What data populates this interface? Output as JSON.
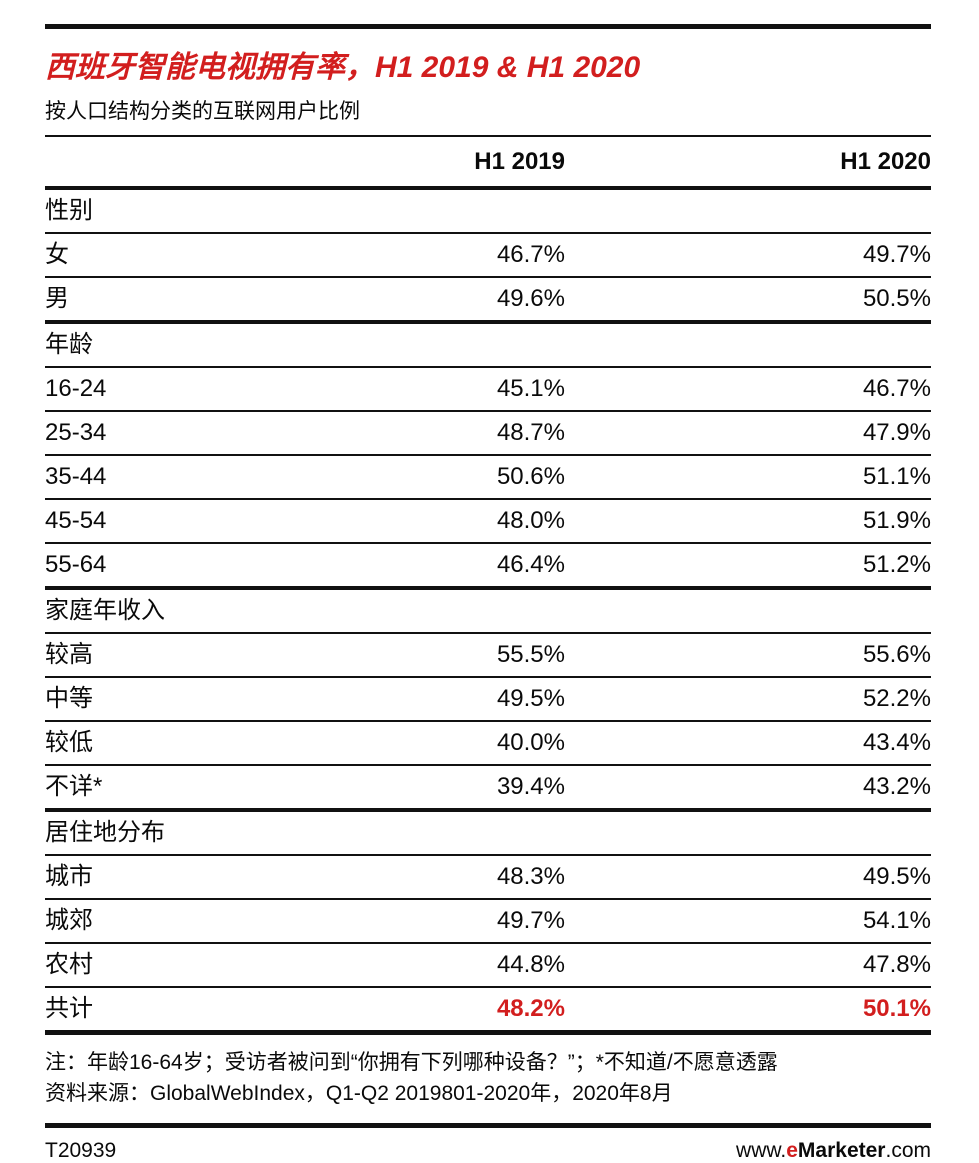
{
  "header": {
    "title": "西班牙智能电视拥有率，H1 2019 & H1 2020",
    "subtitle": "按人口结构分类的互联网用户比例",
    "col_h1_2019": "H1 2019",
    "col_h1_2020": "H1 2020"
  },
  "notes": {
    "note": "注：年龄16-64岁；受访者被问到“你拥有下列哪种设备？”；*不知道/不愿意透露",
    "source": "资料来源：GlobalWebIndex，Q1-Q2 2019801-2020年，2020年8月"
  },
  "footer": {
    "chart_id": "T20939",
    "site_prefix": "www.",
    "site_e": "e",
    "site_name": "Marketer",
    "site_suffix": ".com"
  },
  "colors": {
    "accent_red": "#d21e1e",
    "rule_black": "#111111"
  },
  "chart_data": {
    "type": "table",
    "title": "西班牙智能电视拥有率，H1 2019 & H1 2020",
    "subtitle": "按人口结构分类的互联网用户比例",
    "columns": [
      "H1 2019",
      "H1 2020"
    ],
    "unit": "%",
    "groups": [
      {
        "group": "性别",
        "rows": [
          [
            "女",
            46.7,
            49.7
          ],
          [
            "男",
            49.6,
            50.5
          ]
        ]
      },
      {
        "group": "年龄",
        "rows": [
          [
            "16-24",
            45.1,
            46.7
          ],
          [
            "25-34",
            48.7,
            47.9
          ],
          [
            "35-44",
            50.6,
            51.1
          ],
          [
            "45-54",
            48.0,
            51.9
          ],
          [
            "55-64",
            46.4,
            51.2
          ]
        ]
      },
      {
        "group": "家庭年收入",
        "rows": [
          [
            "较高",
            55.5,
            55.6
          ],
          [
            "中等",
            49.5,
            52.2
          ],
          [
            "较低",
            40.0,
            43.4
          ],
          [
            "不详*",
            39.4,
            43.2
          ]
        ]
      },
      {
        "group": "居住地分布",
        "rows": [
          [
            "城市",
            48.3,
            49.5
          ],
          [
            "城郊",
            49.7,
            54.1
          ],
          [
            "农村",
            44.8,
            47.8
          ]
        ]
      }
    ],
    "total": [
      "共计",
      48.2,
      50.1
    ]
  }
}
